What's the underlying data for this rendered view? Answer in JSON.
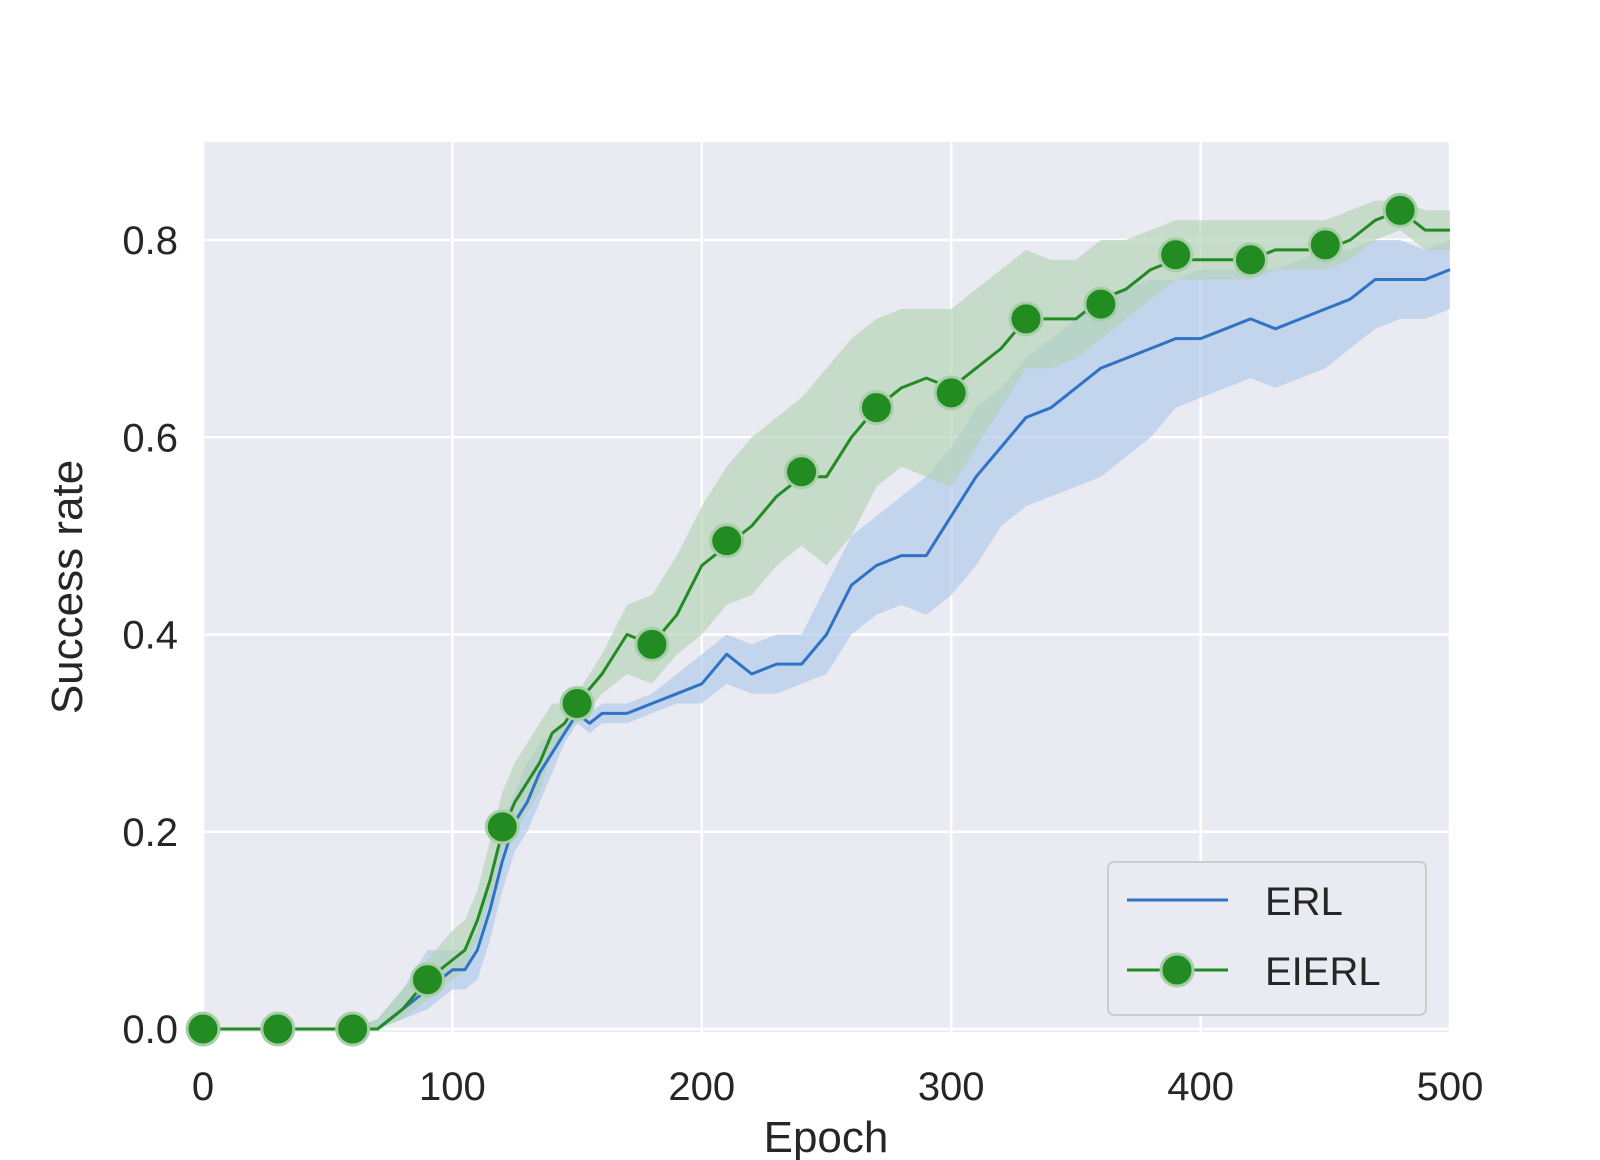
{
  "chart_data": {
    "type": "line",
    "title": "",
    "xlabel": "Epoch",
    "ylabel": "Success rate",
    "xlim": [
      0,
      500
    ],
    "ylim": [
      0.0,
      0.9
    ],
    "x_ticks": [
      "0",
      "100",
      "200",
      "300",
      "400",
      "500"
    ],
    "y_ticks": [
      "0.0",
      "0.2",
      "0.4",
      "0.6",
      "0.8"
    ],
    "grid": true,
    "legend_position": "bottom-right",
    "series": [
      {
        "name": "ERL",
        "color": "#2e73c4",
        "band_color": "#aec7ea",
        "marker": "none",
        "x": [
          0,
          30,
          60,
          70,
          80,
          90,
          100,
          105,
          110,
          115,
          120,
          125,
          130,
          135,
          140,
          145,
          150,
          155,
          160,
          170,
          180,
          190,
          200,
          210,
          220,
          230,
          240,
          250,
          260,
          270,
          280,
          290,
          300,
          310,
          320,
          330,
          340,
          350,
          360,
          370,
          380,
          390,
          400,
          410,
          420,
          430,
          440,
          450,
          460,
          470,
          480,
          490,
          500
        ],
        "y": [
          0.0,
          0.0,
          0.0,
          0.0,
          0.02,
          0.04,
          0.06,
          0.06,
          0.08,
          0.12,
          0.17,
          0.21,
          0.23,
          0.26,
          0.28,
          0.3,
          0.32,
          0.31,
          0.32,
          0.32,
          0.33,
          0.34,
          0.35,
          0.38,
          0.36,
          0.37,
          0.37,
          0.4,
          0.45,
          0.47,
          0.48,
          0.48,
          0.52,
          0.56,
          0.59,
          0.62,
          0.63,
          0.65,
          0.67,
          0.68,
          0.69,
          0.7,
          0.7,
          0.71,
          0.72,
          0.71,
          0.72,
          0.73,
          0.74,
          0.76,
          0.76,
          0.76,
          0.77
        ],
        "lower": [
          0.0,
          0.0,
          0.0,
          0.0,
          0.01,
          0.02,
          0.04,
          0.04,
          0.05,
          0.09,
          0.14,
          0.18,
          0.2,
          0.23,
          0.26,
          0.29,
          0.31,
          0.3,
          0.31,
          0.31,
          0.32,
          0.33,
          0.33,
          0.35,
          0.34,
          0.34,
          0.35,
          0.36,
          0.4,
          0.42,
          0.43,
          0.42,
          0.44,
          0.47,
          0.51,
          0.53,
          0.54,
          0.55,
          0.56,
          0.58,
          0.6,
          0.63,
          0.64,
          0.65,
          0.66,
          0.65,
          0.66,
          0.67,
          0.69,
          0.71,
          0.72,
          0.72,
          0.73
        ],
        "upper": [
          0.0,
          0.0,
          0.0,
          0.01,
          0.04,
          0.08,
          0.08,
          0.08,
          0.1,
          0.15,
          0.21,
          0.24,
          0.27,
          0.29,
          0.3,
          0.31,
          0.33,
          0.32,
          0.33,
          0.33,
          0.34,
          0.36,
          0.38,
          0.4,
          0.39,
          0.4,
          0.4,
          0.45,
          0.5,
          0.52,
          0.54,
          0.56,
          0.59,
          0.63,
          0.65,
          0.68,
          0.7,
          0.72,
          0.74,
          0.75,
          0.76,
          0.76,
          0.77,
          0.77,
          0.77,
          0.77,
          0.78,
          0.79,
          0.79,
          0.8,
          0.8,
          0.79,
          0.8
        ]
      },
      {
        "name": "EIERL",
        "color": "#228b22",
        "band_color": "#b2d3b2",
        "marker": "circle",
        "x": [
          0,
          30,
          60,
          70,
          80,
          90,
          100,
          105,
          110,
          115,
          120,
          125,
          130,
          135,
          140,
          145,
          150,
          160,
          170,
          180,
          190,
          200,
          210,
          220,
          230,
          240,
          250,
          260,
          270,
          280,
          290,
          300,
          310,
          320,
          330,
          340,
          350,
          360,
          370,
          380,
          390,
          400,
          410,
          420,
          430,
          440,
          450,
          460,
          470,
          480,
          490,
          500
        ],
        "y": [
          0.0,
          0.0,
          0.0,
          0.0,
          0.02,
          0.05,
          0.07,
          0.08,
          0.11,
          0.15,
          0.2,
          0.23,
          0.25,
          0.27,
          0.3,
          0.31,
          0.33,
          0.36,
          0.4,
          0.39,
          0.42,
          0.47,
          0.49,
          0.51,
          0.54,
          0.56,
          0.56,
          0.6,
          0.63,
          0.65,
          0.66,
          0.65,
          0.67,
          0.69,
          0.72,
          0.72,
          0.72,
          0.74,
          0.75,
          0.77,
          0.78,
          0.78,
          0.78,
          0.78,
          0.79,
          0.79,
          0.79,
          0.8,
          0.82,
          0.83,
          0.81,
          0.81
        ],
        "lower": [
          0.0,
          0.0,
          0.0,
          0.0,
          0.01,
          0.03,
          0.05,
          0.06,
          0.09,
          0.13,
          0.18,
          0.2,
          0.22,
          0.24,
          0.28,
          0.3,
          0.31,
          0.34,
          0.36,
          0.35,
          0.38,
          0.4,
          0.43,
          0.44,
          0.47,
          0.49,
          0.47,
          0.5,
          0.55,
          0.57,
          0.56,
          0.55,
          0.59,
          0.63,
          0.67,
          0.67,
          0.68,
          0.7,
          0.72,
          0.74,
          0.76,
          0.76,
          0.76,
          0.76,
          0.77,
          0.77,
          0.77,
          0.78,
          0.8,
          0.81,
          0.79,
          0.79
        ],
        "upper": [
          0.0,
          0.0,
          0.0,
          0.01,
          0.04,
          0.07,
          0.1,
          0.11,
          0.14,
          0.19,
          0.24,
          0.27,
          0.29,
          0.31,
          0.33,
          0.33,
          0.34,
          0.38,
          0.43,
          0.44,
          0.48,
          0.53,
          0.57,
          0.6,
          0.62,
          0.64,
          0.67,
          0.7,
          0.72,
          0.73,
          0.73,
          0.73,
          0.75,
          0.77,
          0.79,
          0.78,
          0.78,
          0.8,
          0.8,
          0.81,
          0.82,
          0.82,
          0.82,
          0.82,
          0.82,
          0.82,
          0.82,
          0.83,
          0.84,
          0.84,
          0.83,
          0.83
        ],
        "marker_x": [
          0,
          30,
          60,
          90,
          120,
          150,
          180,
          210,
          240,
          270,
          300,
          330,
          360,
          390,
          420,
          450,
          480
        ],
        "marker_y": [
          0.0,
          0.0,
          0.0,
          0.05,
          0.205,
          0.33,
          0.39,
          0.495,
          0.565,
          0.63,
          0.645,
          0.72,
          0.735,
          0.785,
          0.78,
          0.795,
          0.83
        ]
      }
    ]
  }
}
